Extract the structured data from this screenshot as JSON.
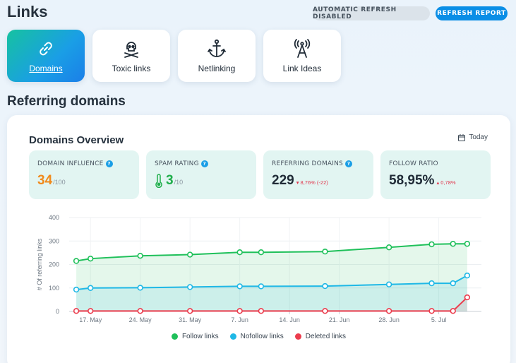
{
  "header": {
    "title": "Links",
    "auto_refresh_label": "AUTOMATIC REFRESH DISABLED",
    "refresh_label": "REFRESH REPORT"
  },
  "tabs": [
    {
      "label": "Domains",
      "icon": "link-icon",
      "active": true
    },
    {
      "label": "Toxic links",
      "icon": "skull-crossbones-icon",
      "active": false
    },
    {
      "label": "Netlinking",
      "icon": "anchor-icon",
      "active": false
    },
    {
      "label": "Link Ideas",
      "icon": "antenna-icon",
      "active": false
    }
  ],
  "section_title": "Referring domains",
  "overview": {
    "title": "Domains Overview",
    "date_filter": "Today",
    "cards": [
      {
        "label": "DOMAIN INFLUENCE",
        "value": "34",
        "suffix": "/100",
        "delta": "",
        "has_help": true
      },
      {
        "label": "SPAM RATING",
        "value": "3",
        "suffix": "/10",
        "delta": "",
        "has_help": true
      },
      {
        "label": "REFERRING DOMAINS",
        "value": "229",
        "suffix": "",
        "delta": "▾ 8,76% (-22)",
        "has_help": true
      },
      {
        "label": "FOLLOW RATIO",
        "value": "58,95%",
        "suffix": "",
        "delta": "▴ 0,78%",
        "has_help": false
      }
    ]
  },
  "colors": {
    "follow": "#1fc05a",
    "nofollow": "#1fb8e6",
    "deleted": "#ec3c4d",
    "accent": "#1a9ee6"
  },
  "chart_data": {
    "type": "line",
    "ylabel": "# Of referring links",
    "ylim": [
      0,
      400
    ],
    "yticks": [
      0,
      100,
      200,
      300,
      400
    ],
    "xticks": [
      "17. May",
      "24. May",
      "31. May",
      "7. Jun",
      "14. Jun",
      "21. Jun",
      "28. Jun",
      "5. Jul"
    ],
    "x": [
      "2023-05-15",
      "2023-05-17",
      "2023-05-24",
      "2023-05-31",
      "2023-06-07",
      "2023-06-10",
      "2023-06-19",
      "2023-06-28",
      "2023-07-04",
      "2023-07-07",
      "2023-07-09"
    ],
    "xtick_dates": [
      "2023-05-17",
      "2023-05-24",
      "2023-05-31",
      "2023-06-07",
      "2023-06-14",
      "2023-06-21",
      "2023-06-28",
      "2023-07-05"
    ],
    "xlim": [
      "2023-05-14",
      "2023-07-11"
    ],
    "grid": true,
    "legend_position": "bottom",
    "series": [
      {
        "name": "Follow links",
        "color": "#1fc05a",
        "values": [
          215,
          225,
          237,
          242,
          252,
          252,
          255,
          273,
          286,
          288,
          288
        ]
      },
      {
        "name": "Nofollow links",
        "color": "#1fb8e6",
        "values": [
          93,
          100,
          101,
          104,
          107,
          107,
          108,
          115,
          120,
          120,
          153
        ]
      },
      {
        "name": "Deleted links",
        "color": "#ec3c4d",
        "values": [
          2,
          2,
          2,
          2,
          2,
          2,
          2,
          2,
          2,
          2,
          60
        ]
      }
    ]
  }
}
